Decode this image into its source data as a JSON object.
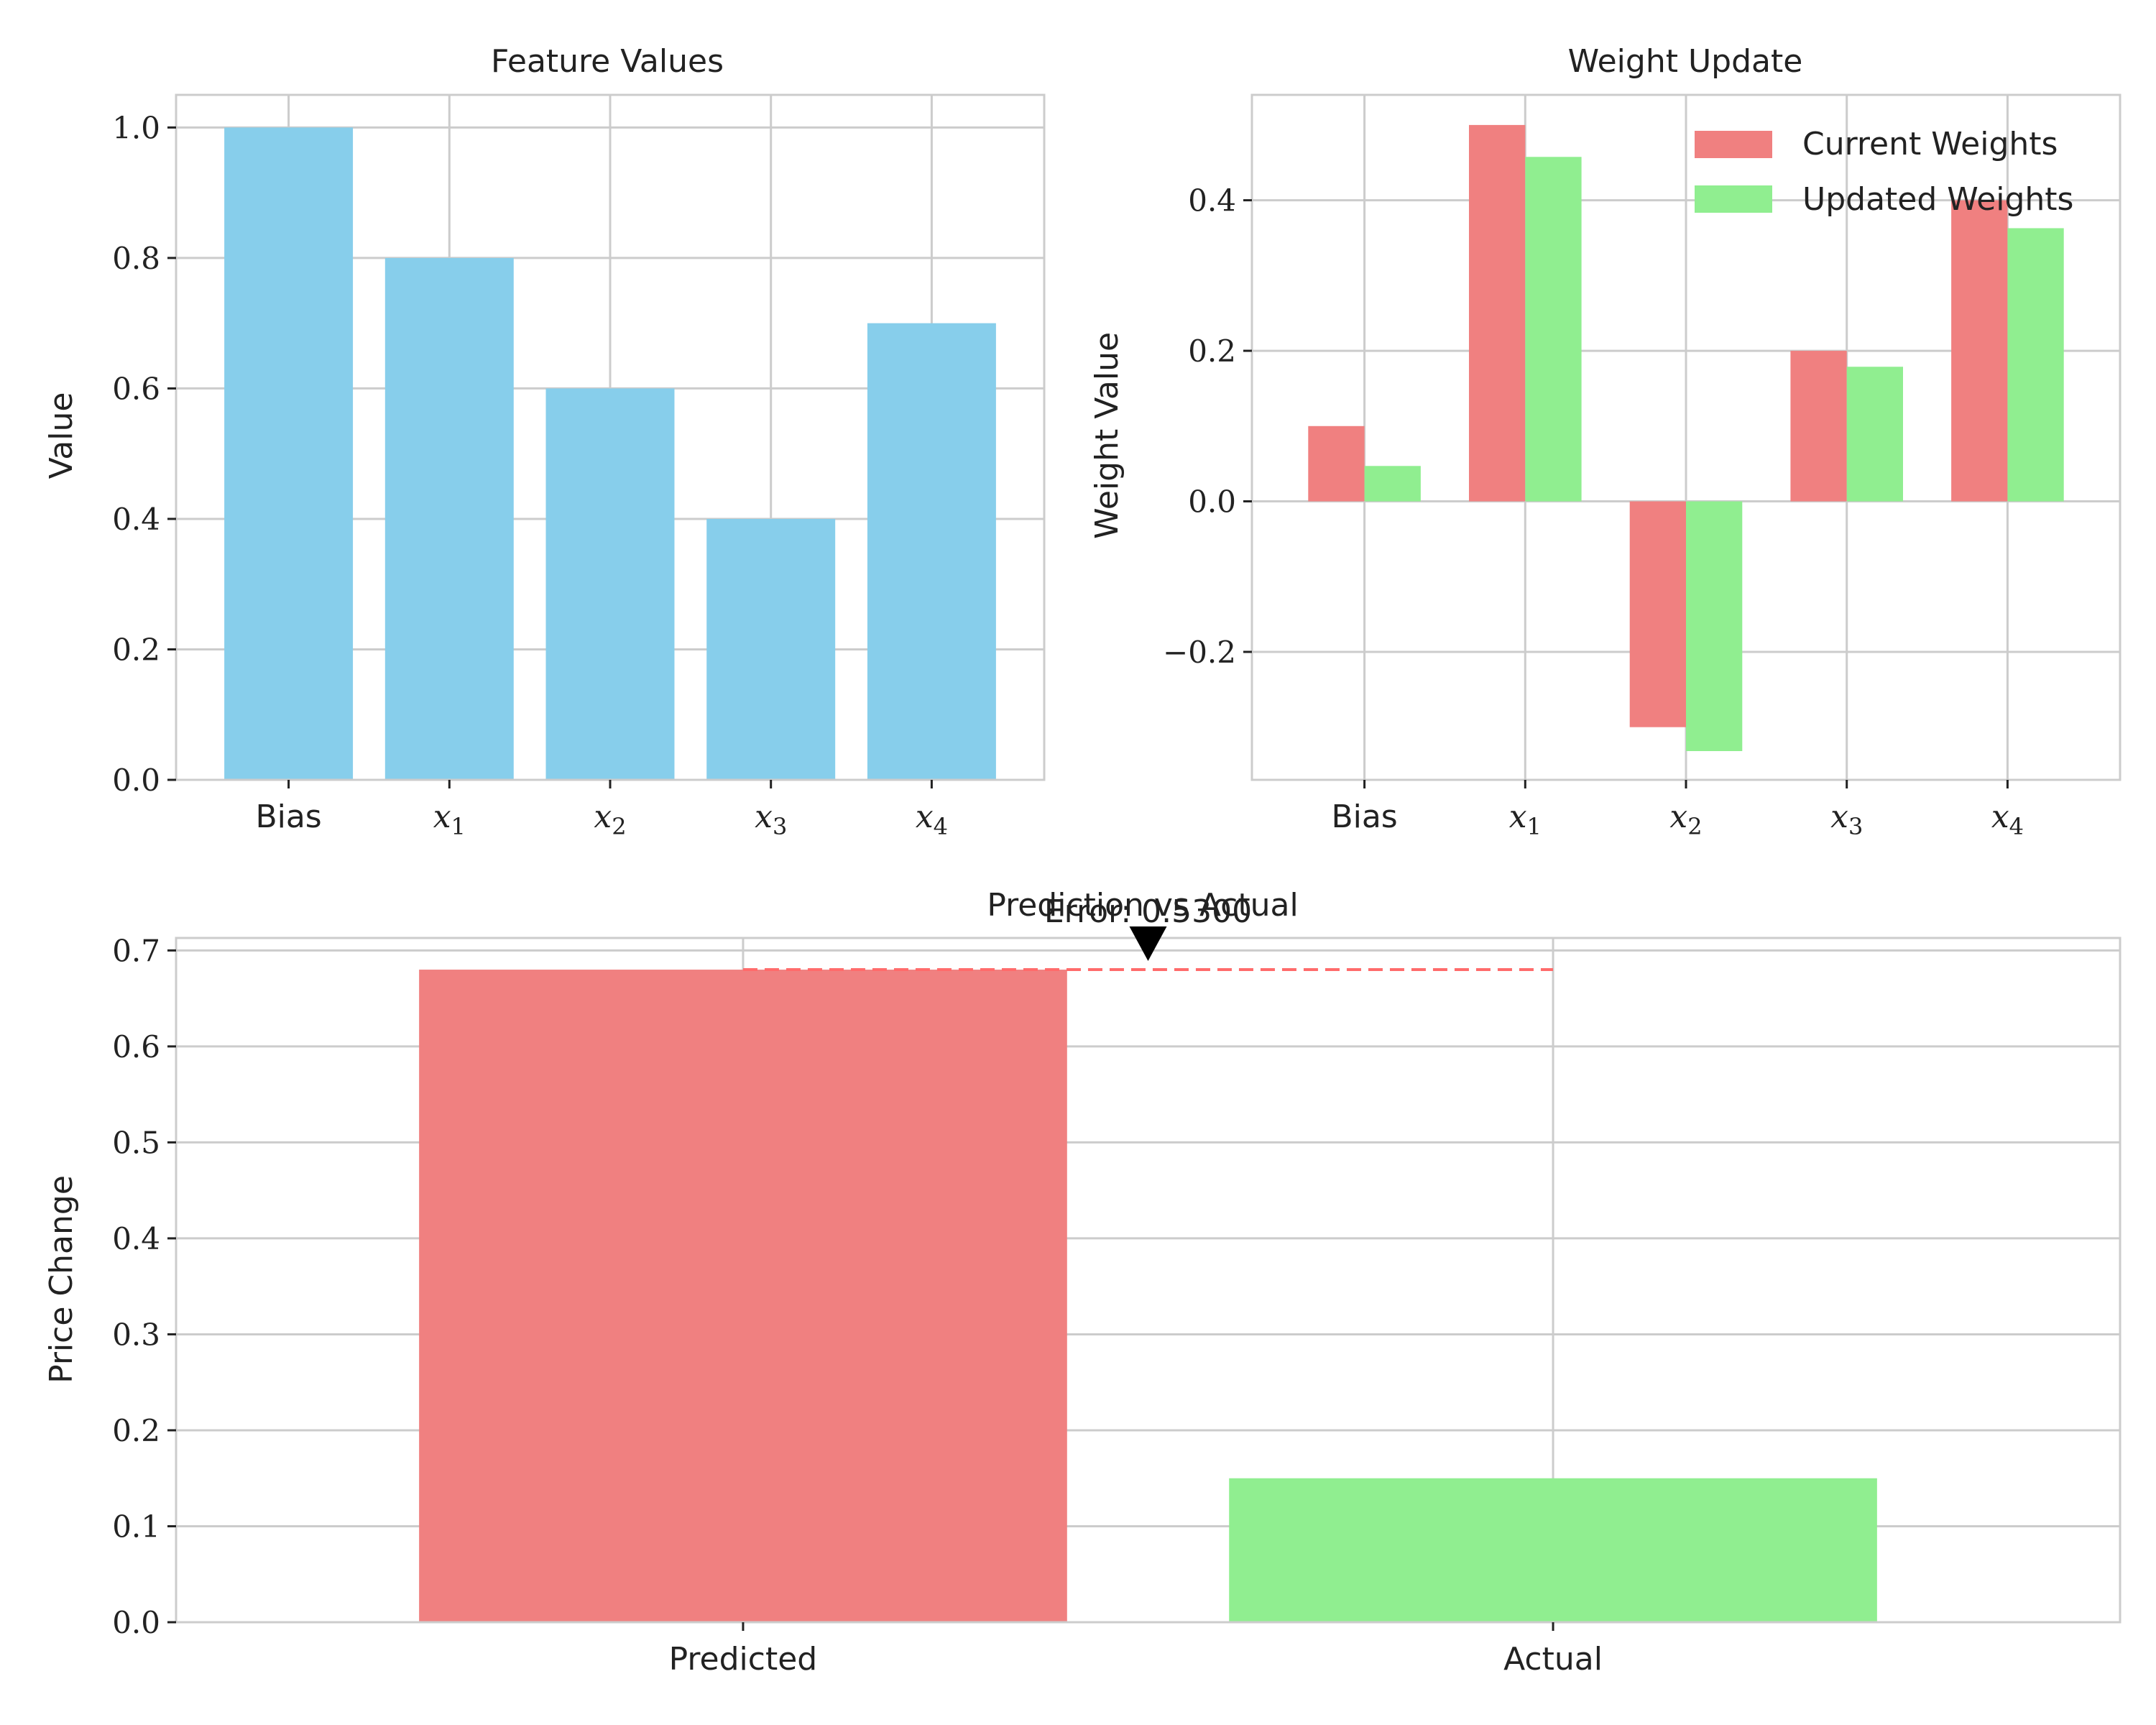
{
  "colors": {
    "feature_bar": "#87ceeb",
    "current": "#f08080",
    "updated": "#90ee90",
    "grid": "#cccccc",
    "axis": "#cccccc",
    "text": "#222222",
    "error_line": "#ff6b6b",
    "arrow": "#000000"
  },
  "chart_data": [
    {
      "type": "bar",
      "title": "Feature Values",
      "xlabel": "",
      "ylabel": "Value",
      "categories": [
        "Bias",
        "x1",
        "x2",
        "x3",
        "x4"
      ],
      "values": [
        1.0,
        0.8,
        0.6,
        0.4,
        0.7
      ],
      "ylim": [
        0,
        1.05
      ],
      "yticks": [
        "0.0",
        "0.2",
        "0.4",
        "0.6",
        "0.8",
        "1.0"
      ],
      "grid": true
    },
    {
      "type": "bar",
      "title": "Weight Update",
      "xlabel": "",
      "ylabel": "Weight Value",
      "categories": [
        "Bias",
        "x1",
        "x2",
        "x3",
        "x4"
      ],
      "series": [
        {
          "name": "Current Weights",
          "values": [
            0.1,
            0.5,
            -0.3,
            0.2,
            0.4
          ]
        },
        {
          "name": "Updated Weights",
          "values": [
            0.047,
            0.4576,
            -0.3318,
            0.1788,
            0.3629
          ]
        }
      ],
      "ylim": [
        -0.37,
        0.54
      ],
      "yticks": [
        "−0.2",
        "0.0",
        "0.2",
        "0.4"
      ],
      "legend_position": "top-right",
      "grid": true
    },
    {
      "type": "bar",
      "title": "Prediction vs Actual",
      "xlabel": "",
      "ylabel": "Price Change",
      "categories": [
        "Predicted",
        "Actual"
      ],
      "values": [
        0.68,
        0.15
      ],
      "ylim": [
        0,
        0.713
      ],
      "yticks": [
        "0.0",
        "0.1",
        "0.2",
        "0.3",
        "0.4",
        "0.5",
        "0.6",
        "0.7"
      ],
      "annotation": "Error: 0.5300",
      "reference_line_value": 0.68,
      "grid": true
    }
  ]
}
